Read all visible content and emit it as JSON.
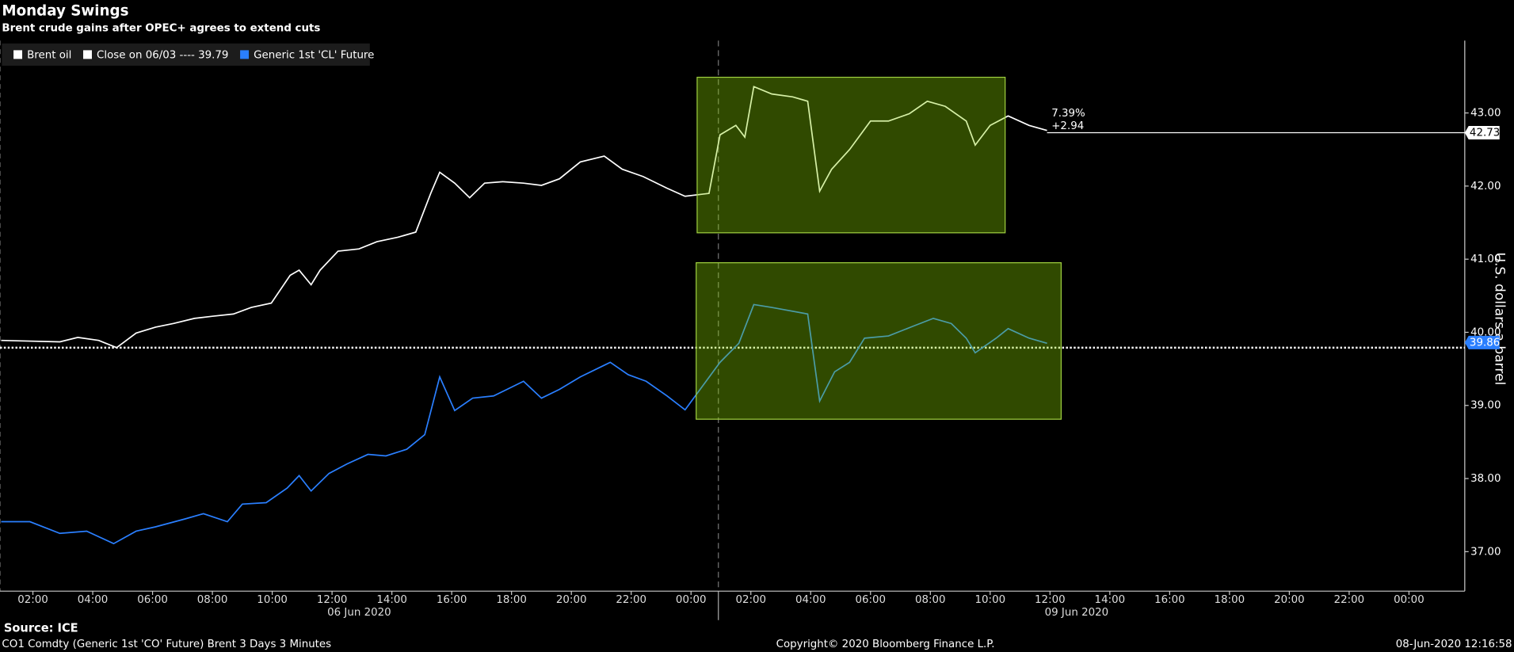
{
  "chart_data": {
    "type": "line",
    "title": "Monday Swings",
    "subtitle": "Brent crude gains after OPEC+ agrees to extend cuts",
    "y_axis_label": "U.S. dollars a barrel",
    "source": "Source: ICE",
    "footer_left": "CO1 Comdty (Generic 1st 'CO' Future) Brent 3 Days 3 Minutes",
    "footer_center": "Copyright© 2020 Bloomberg Finance L.P.",
    "footer_right": "08-Jun-2020 12:16:58",
    "dates": [
      "06 Jun 2020",
      "09 Jun 2020"
    ],
    "reference_line": {
      "label": "Close on 06/03 ---- 39.79",
      "value": 39.79,
      "color": "#ffffff"
    },
    "annotations": [
      "7.39%",
      "+2.94"
    ],
    "last_values": [
      42.73,
      39.86
    ],
    "xlim": [
      0.9,
      49.8
    ],
    "ylim": [
      36.46,
      43.99
    ],
    "xticks": [
      {
        "value": 2,
        "label": "02:00"
      },
      {
        "value": 4,
        "label": "04:00"
      },
      {
        "value": 6,
        "label": "06:00"
      },
      {
        "value": 8,
        "label": "08:00"
      },
      {
        "value": 10,
        "label": "10:00"
      },
      {
        "value": 12,
        "label": "12:00"
      },
      {
        "value": 14,
        "label": "14:00"
      },
      {
        "value": 16,
        "label": "16:00"
      },
      {
        "value": 18,
        "label": "18:00"
      },
      {
        "value": 20,
        "label": "20:00"
      },
      {
        "value": 22,
        "label": "22:00"
      },
      {
        "value": 24,
        "label": "00:00"
      },
      {
        "value": 26,
        "label": "02:00"
      },
      {
        "value": 28,
        "label": "04:00"
      },
      {
        "value": 30,
        "label": "06:00"
      },
      {
        "value": 32,
        "label": "08:00"
      },
      {
        "value": 34,
        "label": "10:00"
      },
      {
        "value": 36,
        "label": "12:00"
      },
      {
        "value": 38,
        "label": "14:00"
      },
      {
        "value": 40,
        "label": "16:00"
      },
      {
        "value": 42,
        "label": "18:00"
      },
      {
        "value": 44,
        "label": "20:00"
      },
      {
        "value": 46,
        "label": "22:00"
      },
      {
        "value": 48,
        "label": "00:00"
      }
    ],
    "yticks": [
      {
        "value": 37,
        "label": "37.00"
      },
      {
        "value": 38,
        "label": "38.00"
      },
      {
        "value": 39,
        "label": "39.00"
      },
      {
        "value": 40,
        "label": "40.00"
      },
      {
        "value": 41,
        "label": "41.00"
      },
      {
        "value": 42,
        "label": "42.00"
      },
      {
        "value": 43,
        "label": "43.00"
      }
    ],
    "series": [
      {
        "name": "Brent oil",
        "color": "#ffffff",
        "x": [
          0.94,
          2.9,
          3.5,
          4.2,
          4.8,
          5.45,
          6.1,
          6.7,
          7.4,
          8.0,
          8.7,
          9.3,
          9.97,
          10.6,
          10.9,
          11.3,
          11.6,
          12.2,
          12.9,
          13.5,
          14.2,
          14.8,
          15.3,
          15.6,
          16.1,
          16.6,
          17.1,
          17.7,
          18.4,
          19.0,
          19.6,
          20.3,
          21.1,
          21.7,
          22.4,
          23.2,
          23.8,
          24.6,
          24.97,
          25.5,
          25.8,
          26.1,
          26.7,
          27.4,
          27.9,
          28.3,
          28.7,
          29.3,
          30.0,
          30.6,
          31.3,
          31.9,
          32.5,
          33.2,
          33.5,
          34.0,
          34.6,
          35.3,
          35.9
        ],
        "values": [
          39.89,
          39.87,
          39.93,
          39.89,
          39.79,
          39.99,
          40.07,
          40.12,
          40.19,
          40.22,
          40.25,
          40.34,
          40.4,
          40.78,
          40.85,
          40.65,
          40.85,
          41.11,
          41.14,
          41.24,
          41.3,
          41.37,
          41.9,
          42.19,
          42.04,
          41.84,
          42.04,
          42.06,
          42.04,
          42.01,
          42.1,
          42.33,
          42.41,
          42.23,
          42.13,
          41.97,
          41.86,
          41.9,
          42.7,
          42.83,
          42.67,
          43.36,
          43.26,
          43.22,
          43.16,
          41.93,
          42.23,
          42.5,
          42.89,
          42.89,
          42.99,
          43.16,
          43.09,
          42.89,
          42.56,
          42.83,
          42.96,
          42.83,
          42.76
        ]
      },
      {
        "name": "Generic 1st 'CL' Future",
        "color": "#2a7fff",
        "x": [
          0.94,
          1.9,
          2.9,
          3.8,
          4.7,
          5.45,
          6.1,
          7.1,
          7.7,
          8.5,
          9.0,
          9.8,
          10.5,
          10.9,
          11.3,
          11.9,
          12.5,
          13.2,
          13.8,
          14.5,
          15.1,
          15.6,
          16.1,
          16.7,
          17.4,
          18.4,
          19.0,
          19.6,
          20.3,
          21.3,
          21.9,
          22.5,
          23.2,
          23.8,
          24.97,
          25.6,
          26.1,
          26.7,
          27.9,
          28.3,
          28.8,
          29.3,
          29.8,
          30.6,
          31.4,
          32.1,
          32.7,
          33.2,
          33.5,
          34.2,
          34.6,
          35.3,
          35.9
        ],
        "values": [
          37.41,
          37.41,
          37.25,
          37.28,
          37.11,
          37.28,
          37.34,
          37.45,
          37.52,
          37.41,
          37.65,
          37.67,
          37.87,
          38.04,
          37.83,
          38.07,
          38.2,
          38.33,
          38.31,
          38.4,
          38.6,
          39.39,
          38.93,
          39.1,
          39.13,
          39.33,
          39.1,
          39.22,
          39.39,
          39.59,
          39.42,
          39.33,
          39.13,
          38.94,
          39.59,
          39.85,
          40.38,
          40.34,
          40.25,
          39.06,
          39.46,
          39.59,
          39.92,
          39.95,
          40.08,
          40.19,
          40.12,
          39.92,
          39.72,
          39.92,
          40.05,
          39.92,
          39.85
        ]
      }
    ]
  }
}
